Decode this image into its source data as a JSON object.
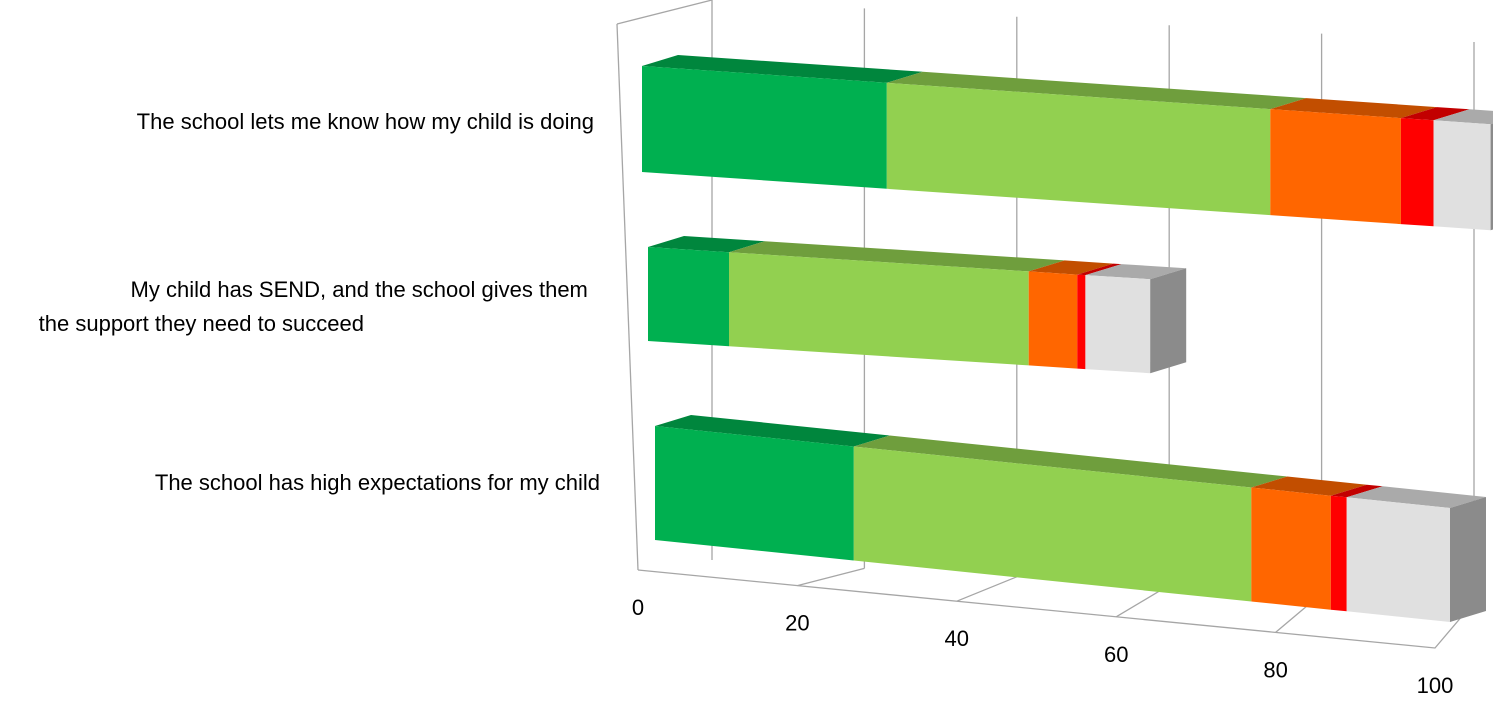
{
  "chart_data": {
    "type": "bar",
    "orientation": "horizontal",
    "stacked": true,
    "style": "3d",
    "title": "",
    "xlabel": "",
    "ylabel": "",
    "xlim": [
      0,
      100
    ],
    "x_ticks": [
      "0",
      "20",
      "40",
      "60",
      "80",
      "100"
    ],
    "grid": true,
    "legend": "none",
    "categories": [
      "The school lets me know how my child is doing",
      "My child has SEND, and the school gives them the support they need to succeed",
      "The school has high expectations for my child"
    ],
    "series": [
      {
        "color": "#00b050",
        "values": [
          30,
          10,
          25
        ]
      },
      {
        "color": "#92d050",
        "values": [
          47,
          37,
          50
        ]
      },
      {
        "color": "#ff6600",
        "values": [
          16,
          6,
          10
        ]
      },
      {
        "color": "#ff0000",
        "values": [
          4,
          1,
          2
        ]
      },
      {
        "color": "#e0e0e0",
        "values": [
          7,
          8,
          13
        ]
      }
    ]
  }
}
